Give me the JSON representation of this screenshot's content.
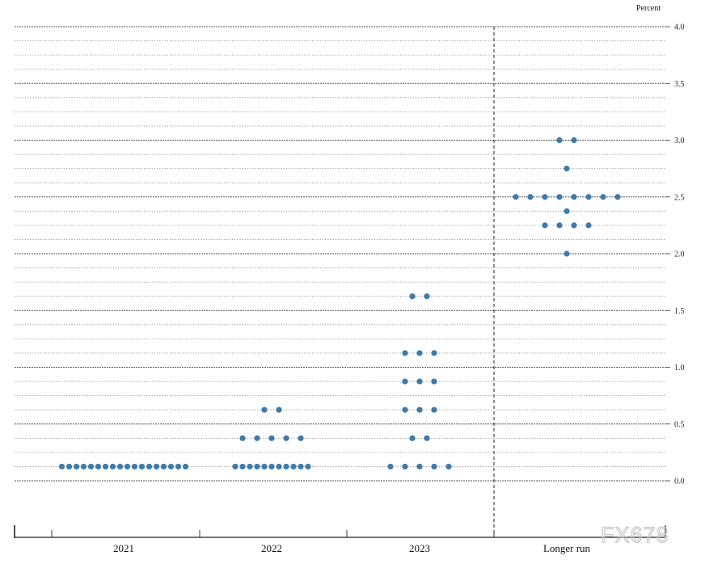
{
  "chart_data": {
    "type": "scatter",
    "subtype": "dot-plot",
    "ylabel": "Percent",
    "ylim": [
      0,
      4.0
    ],
    "y_ticks": [
      "0.0",
      "0.5",
      "1.0",
      "1.5",
      "2.0",
      "2.5",
      "3.0",
      "3.5",
      "4.0"
    ],
    "grid": "dotted horizontal lines every 0.125",
    "categories": [
      "2021",
      "2022",
      "2023",
      "Longer run"
    ],
    "divider_before": "Longer run",
    "series": [
      {
        "category": "2021",
        "dots": [
          {
            "y": 0.125,
            "count": 18
          }
        ]
      },
      {
        "category": "2022",
        "dots": [
          {
            "y": 0.625,
            "count": 2
          },
          {
            "y": 0.375,
            "count": 5
          },
          {
            "y": 0.125,
            "count": 11
          }
        ]
      },
      {
        "category": "2023",
        "dots": [
          {
            "y": 1.625,
            "count": 2
          },
          {
            "y": 1.125,
            "count": 3
          },
          {
            "y": 0.875,
            "count": 3
          },
          {
            "y": 0.625,
            "count": 3
          },
          {
            "y": 0.375,
            "count": 2
          },
          {
            "y": 0.125,
            "count": 5
          }
        ]
      },
      {
        "category": "Longer run",
        "dots": [
          {
            "y": 3.0,
            "count": 2
          },
          {
            "y": 2.75,
            "count": 1
          },
          {
            "y": 2.5,
            "count": 8
          },
          {
            "y": 2.375,
            "count": 1
          },
          {
            "y": 2.25,
            "count": 4
          },
          {
            "y": 2.0,
            "count": 1
          }
        ]
      }
    ],
    "dot_color": "#3f7aa8"
  },
  "watermark": "FX678"
}
